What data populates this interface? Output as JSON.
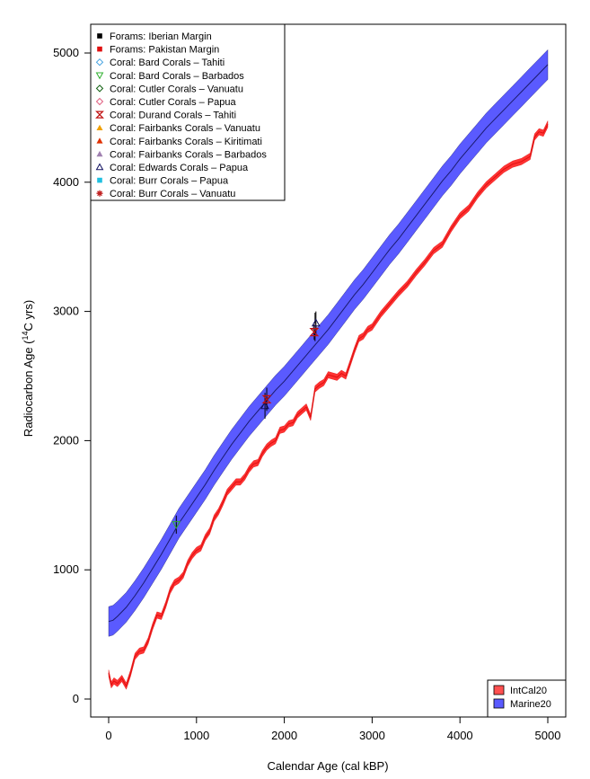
{
  "chart_data": {
    "type": "line",
    "xlabel": "Calendar Age (cal kBP)",
    "ylabel_main": "Radiocarbon Age (",
    "ylabel_sup": "14",
    "ylabel_tail": "C yrs)",
    "xlim": [
      0,
      5000
    ],
    "ylim": [
      0,
      5000
    ],
    "x_ticks": [
      0,
      1000,
      2000,
      3000,
      4000,
      5000
    ],
    "y_ticks": [
      0,
      1000,
      2000,
      3000,
      4000,
      5000
    ],
    "x_tick_labels": [
      "0",
      "1000",
      "2000",
      "3000",
      "4000",
      "5000"
    ],
    "y_tick_labels": [
      "0",
      "1000",
      "2000",
      "3000",
      "4000",
      "5000"
    ],
    "grid": false,
    "series": [
      {
        "name": "Marine20",
        "color": "#5a5aff",
        "line_color": "#1a1a6e",
        "band_halfwidth": 115,
        "x": [
          0,
          50,
          100,
          200,
          300,
          400,
          500,
          600,
          700,
          800,
          900,
          1000,
          1100,
          1200,
          1300,
          1400,
          1500,
          1600,
          1700,
          1800,
          1900,
          2000,
          2100,
          2200,
          2300,
          2400,
          2500,
          2600,
          2700,
          2800,
          2900,
          3000,
          3100,
          3200,
          3300,
          3400,
          3500,
          3600,
          3700,
          3800,
          3900,
          4000,
          4100,
          4200,
          4300,
          4400,
          4500,
          4600,
          4700,
          4800,
          4900,
          5000
        ],
        "y": [
          600,
          610,
          640,
          710,
          800,
          900,
          1010,
          1120,
          1240,
          1360,
          1460,
          1560,
          1660,
          1770,
          1870,
          1970,
          2060,
          2150,
          2230,
          2310,
          2390,
          2460,
          2540,
          2620,
          2700,
          2780,
          2860,
          2950,
          3040,
          3130,
          3210,
          3300,
          3390,
          3480,
          3560,
          3650,
          3740,
          3830,
          3920,
          4010,
          4090,
          4180,
          4260,
          4340,
          4420,
          4490,
          4560,
          4630,
          4700,
          4770,
          4840,
          4910
        ]
      },
      {
        "name": "IntCal20",
        "color": "#ff3333",
        "line_color": "#e01010",
        "band_halfwidth": 25,
        "x": [
          0,
          30,
          60,
          100,
          150,
          200,
          250,
          300,
          350,
          400,
          450,
          500,
          550,
          600,
          650,
          700,
          750,
          800,
          850,
          900,
          950,
          1000,
          1050,
          1100,
          1150,
          1200,
          1250,
          1300,
          1350,
          1400,
          1450,
          1500,
          1550,
          1600,
          1650,
          1700,
          1750,
          1800,
          1850,
          1900,
          1950,
          2000,
          2050,
          2100,
          2150,
          2200,
          2250,
          2300,
          2350,
          2400,
          2450,
          2500,
          2550,
          2600,
          2650,
          2700,
          2750,
          2800,
          2850,
          2900,
          2950,
          3000,
          3100,
          3200,
          3300,
          3400,
          3500,
          3600,
          3700,
          3800,
          3900,
          4000,
          4100,
          4200,
          4300,
          4400,
          4500,
          4600,
          4700,
          4800,
          4850,
          4900,
          4950,
          5000
        ],
        "y": [
          200,
          110,
          140,
          120,
          160,
          100,
          200,
          330,
          370,
          380,
          450,
          560,
          650,
          640,
          730,
          840,
          900,
          920,
          960,
          1050,
          1110,
          1150,
          1170,
          1250,
          1300,
          1400,
          1450,
          1520,
          1600,
          1640,
          1680,
          1680,
          1720,
          1780,
          1820,
          1830,
          1900,
          1950,
          1980,
          2000,
          2080,
          2090,
          2130,
          2140,
          2200,
          2230,
          2260,
          2180,
          2400,
          2430,
          2450,
          2510,
          2500,
          2490,
          2520,
          2500,
          2600,
          2700,
          2790,
          2810,
          2860,
          2880,
          2980,
          3060,
          3140,
          3210,
          3300,
          3380,
          3470,
          3520,
          3640,
          3740,
          3800,
          3900,
          3980,
          4040,
          4100,
          4140,
          4160,
          4200,
          4350,
          4390,
          4380,
          4450
        ]
      }
    ],
    "points": [
      {
        "series": "Coral: Bard Corals – Barbados",
        "x": 770,
        "y": 1350,
        "err": 70
      },
      {
        "series": "Coral: Edwards Corals – Papua",
        "x": 1780,
        "y": 2270,
        "err": 100
      },
      {
        "series": "Coral: Durand Corals – Tahiti",
        "x": 1800,
        "y": 2320,
        "err": 90
      },
      {
        "series": "Coral: Fairbanks Corals – Barbados",
        "x": 2350,
        "y": 2880,
        "err": 110
      },
      {
        "series": "Coral: Edwards Corals – Papua",
        "x": 2360,
        "y": 2910,
        "err": 90
      },
      {
        "series": "Coral: Durand Corals – Tahiti",
        "x": 2340,
        "y": 2840,
        "err": 60
      }
    ],
    "legend_main": {
      "position": "top-left",
      "entries": [
        {
          "label": "Forams: Iberian Margin",
          "symbol": "square-filled",
          "color": "#000000"
        },
        {
          "label": "Forams: Pakistan Margin",
          "symbol": "square-filled",
          "color": "#e01010"
        },
        {
          "label": "Coral: Bard Corals – Tahiti",
          "symbol": "diamond-open",
          "color": "#40a0e0"
        },
        {
          "label": "Coral: Bard Corals – Barbados",
          "symbol": "triangle-down-open",
          "color": "#30b030"
        },
        {
          "label": "Coral: Cutler Corals – Vanuatu",
          "symbol": "diamond-open",
          "color": "#106010"
        },
        {
          "label": "Coral: Cutler Corals – Papua",
          "symbol": "diamond-open",
          "color": "#e06080"
        },
        {
          "label": "Coral: Durand Corals – Tahiti",
          "symbol": "hourglass",
          "color": "#c01010"
        },
        {
          "label": "Coral: Fairbanks Corals – Vanuatu",
          "symbol": "triangle-filled",
          "color": "#f0a000"
        },
        {
          "label": "Coral: Fairbanks Corals – Kiritimati",
          "symbol": "triangle-filled",
          "color": "#e03000"
        },
        {
          "label": "Coral: Fairbanks Corals – Barbados",
          "symbol": "triangle-filled",
          "color": "#a080b0"
        },
        {
          "label": "Coral: Edwards Corals – Papua",
          "symbol": "triangle-open",
          "color": "#101060"
        },
        {
          "label": "Coral: Burr Corals – Papua",
          "symbol": "square-filled",
          "color": "#20c0e0"
        },
        {
          "label": "Coral: Burr Corals – Vanuatu",
          "symbol": "star",
          "color": "#c02020"
        }
      ]
    },
    "legend_curves": {
      "position": "bottom-right",
      "entries": [
        {
          "label": "IntCal20",
          "color": "#ff5050"
        },
        {
          "label": "Marine20",
          "color": "#5a5aff"
        }
      ]
    }
  }
}
